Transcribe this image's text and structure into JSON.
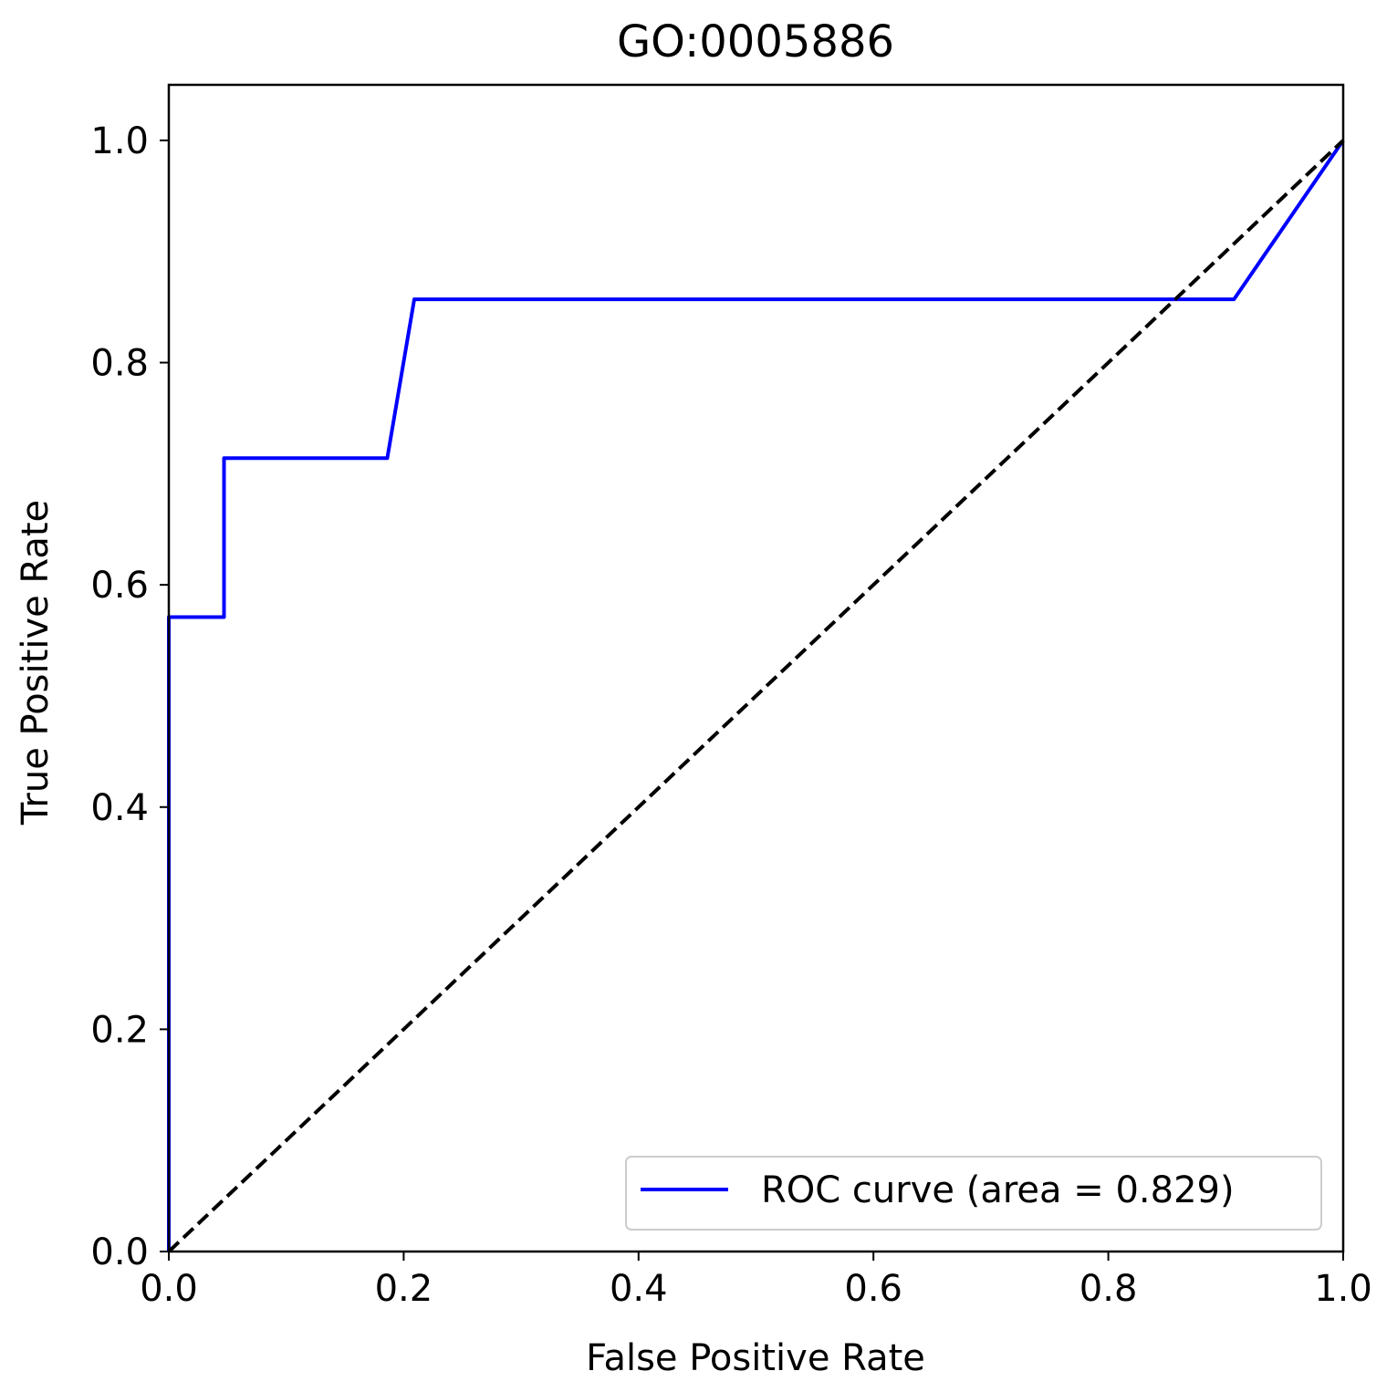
{
  "chart_data": {
    "type": "line",
    "title": "GO:0005886",
    "xlabel": "False Positive Rate",
    "ylabel": "True Positive Rate",
    "xlim": [
      0.0,
      1.0
    ],
    "ylim": [
      0.0,
      1.05
    ],
    "xticks": [
      "0.0",
      "0.2",
      "0.4",
      "0.6",
      "0.8",
      "1.0"
    ],
    "yticks": [
      "0.0",
      "0.2",
      "0.4",
      "0.6",
      "0.8",
      "1.0"
    ],
    "grid": false,
    "legend_position": "lower-right",
    "series": [
      {
        "name": "ROC curve (area = 0.829)",
        "color": "#0000ff",
        "style": "solid",
        "x": [
          0.0,
          0.0,
          0.047,
          0.047,
          0.186,
          0.209,
          0.907,
          1.0
        ],
        "y": [
          0.0,
          0.571,
          0.571,
          0.714,
          0.714,
          0.857,
          0.857,
          1.0
        ]
      },
      {
        "color": "#000000",
        "style": "dashed",
        "x": [
          0.0,
          1.0
        ],
        "y": [
          0.0,
          1.0
        ]
      }
    ]
  }
}
